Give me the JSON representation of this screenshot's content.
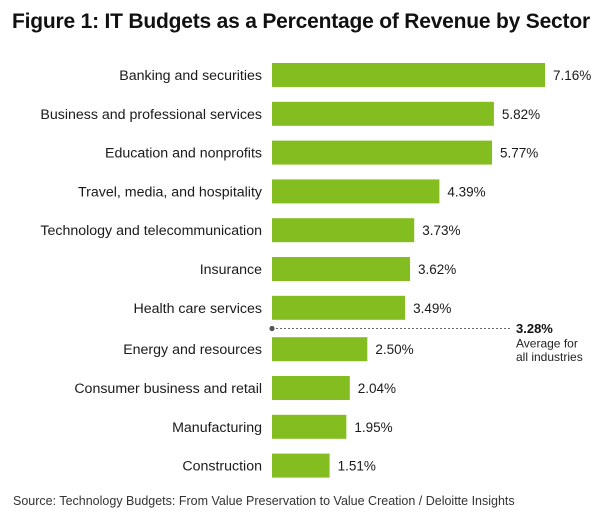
{
  "title": "Figure 1: IT Budgets as a Percentage of Revenue by Sector",
  "source": "Source: Technology Budgets: From Value Preservation to Value Creation / Deloitte Insights",
  "colors": {
    "bar": "#84bd1f",
    "text": "#1a1a1a",
    "reference": "#666666"
  },
  "chart_data": {
    "type": "bar",
    "orientation": "horizontal",
    "title": "Figure 1: IT Budgets as a Percentage of Revenue by Sector",
    "categories": [
      "Banking and securities",
      "Business and professional services",
      "Education and nonprofits",
      "Travel, media, and hospitality",
      "Technology and telecommunication",
      "Insurance",
      "Health care services",
      "Energy and resources",
      "Consumer business and retail",
      "Manufacturing",
      "Construction"
    ],
    "values": [
      7.16,
      5.82,
      5.77,
      4.39,
      3.73,
      3.62,
      3.49,
      2.5,
      2.04,
      1.95,
      1.51
    ],
    "value_labels": [
      "7.16%",
      "5.82%",
      "5.77%",
      "4.39%",
      "3.73%",
      "3.62%",
      "3.49%",
      "2.50%",
      "2.04%",
      "1.95%",
      "1.51%"
    ],
    "xlim": [
      0,
      7.16
    ],
    "grid": false,
    "reference_line": {
      "value_label": "3.28%",
      "label_line1": "Average for",
      "label_line2": "all industries"
    }
  }
}
